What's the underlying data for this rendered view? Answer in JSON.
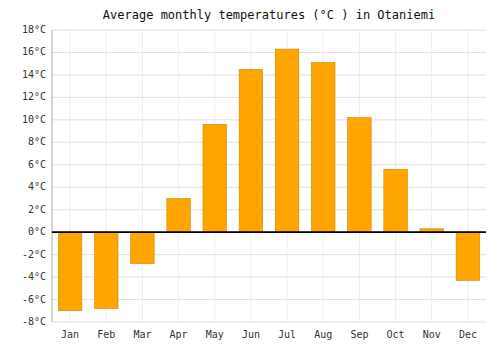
{
  "chart_data": {
    "type": "bar",
    "title": "Average monthly temperatures (°C ) in Otaniemi",
    "categories": [
      "Jan",
      "Feb",
      "Mar",
      "Apr",
      "May",
      "Jun",
      "Jul",
      "Aug",
      "Sep",
      "Oct",
      "Nov",
      "Dec"
    ],
    "values": [
      -7.0,
      -6.8,
      -2.8,
      3.0,
      9.6,
      14.5,
      16.3,
      15.1,
      10.2,
      5.6,
      0.3,
      -4.3
    ],
    "color": "#FFA500",
    "ylim": [
      -8,
      18
    ],
    "yticks": [
      {
        "value": -8,
        "label": "-8°C"
      },
      {
        "value": -6,
        "label": "-6°C"
      },
      {
        "value": -4,
        "label": "-4°C"
      },
      {
        "value": -2,
        "label": "-2°C"
      },
      {
        "value": 0,
        "label": "0°C"
      },
      {
        "value": 2,
        "label": "2°C"
      },
      {
        "value": 4,
        "label": "4°C"
      },
      {
        "value": 6,
        "label": "6°C"
      },
      {
        "value": 8,
        "label": "8°C"
      },
      {
        "value": 10,
        "label": "10°C"
      },
      {
        "value": 12,
        "label": "12°C"
      },
      {
        "value": 14,
        "label": "14°C"
      },
      {
        "value": 16,
        "label": "16°C"
      },
      {
        "value": 18,
        "label": "18°C"
      }
    ],
    "grid": true
  }
}
